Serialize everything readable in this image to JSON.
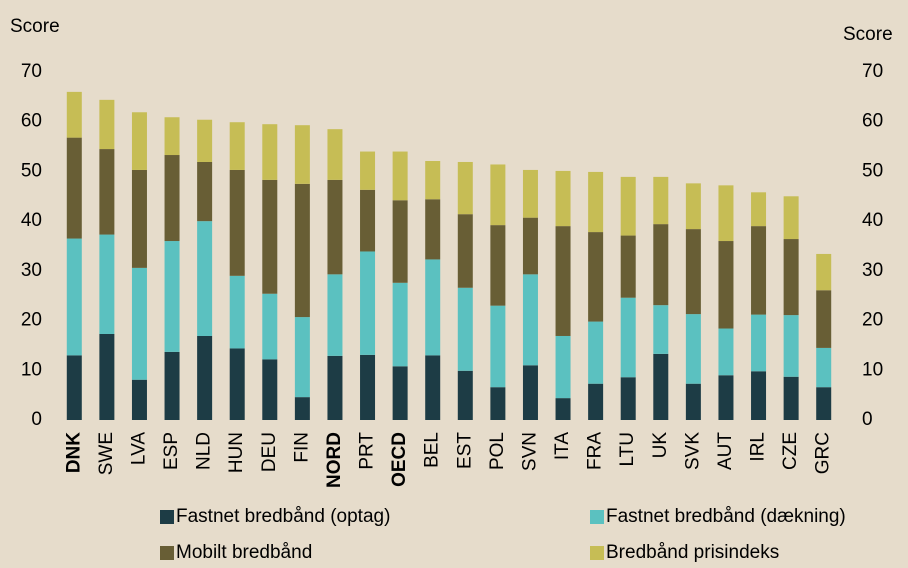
{
  "chart_data": {
    "type": "stacked_bar",
    "y_label": "Score",
    "y2_label": "Score",
    "categories": [
      "DNK",
      "SWE",
      "LVA",
      "ESP",
      "NLD",
      "HUN",
      "DEU",
      "FIN",
      "NORD",
      "PRT",
      "OECD",
      "BEL",
      "EST",
      "POL",
      "SVN",
      "ITA",
      "FRA",
      "LTU",
      "UK",
      "SVK",
      "AUT",
      "IRL",
      "CZE",
      "GRC"
    ],
    "bold_categories": [
      0,
      8,
      10
    ],
    "series": [
      {
        "name": "Fastnet bredbånd (optag)",
        "color": "#1d3c45",
        "values": [
          13,
          17.3,
          8.1,
          13.7,
          16.9,
          14.4,
          12.2,
          4.6,
          12.9,
          13.1,
          10.8,
          13,
          9.9,
          6.6,
          11,
          4.4,
          7.3,
          8.6,
          13.3,
          7.3,
          9,
          9.8,
          8.7,
          6.6
        ]
      },
      {
        "name": "Fastnet bredbånd (dækning)",
        "color": "#5bc1c0",
        "values": [
          23.5,
          20,
          22.5,
          22.3,
          23.1,
          14.6,
          13.2,
          16.1,
          16.4,
          20.8,
          16.8,
          19.3,
          16.7,
          16.4,
          18.3,
          12.5,
          12.5,
          16,
          9.8,
          14,
          9.4,
          11.4,
          12.4,
          7.9
        ]
      },
      {
        "name": "Mobilt bredbånd",
        "color": "#685e35",
        "values": [
          20.3,
          17.2,
          19.7,
          17.3,
          11.9,
          21.3,
          22.9,
          26.8,
          19,
          12.4,
          16.6,
          12.1,
          14.8,
          16.2,
          11.4,
          22.1,
          18,
          12.5,
          16.3,
          17.1,
          17.6,
          17.8,
          15.3,
          11.6
        ]
      },
      {
        "name": "Bredbånd prisindeks",
        "color": "#c6bd55",
        "values": [
          9.2,
          9.9,
          11.6,
          7.6,
          8.5,
          9.6,
          11.2,
          11.8,
          10.2,
          7.7,
          9.8,
          7.7,
          10.5,
          12.2,
          9.6,
          11.1,
          12.1,
          11.8,
          9.5,
          9.2,
          11.2,
          6.8,
          8.6,
          7.3
        ]
      }
    ],
    "ylim": [
      0,
      70
    ],
    "yticks": [
      0,
      10,
      20,
      30,
      40,
      50,
      60,
      70
    ],
    "y2lim": [
      0,
      70
    ],
    "y2ticks": [
      0,
      10,
      20,
      30,
      40,
      50,
      60,
      70
    ],
    "grid": false
  }
}
